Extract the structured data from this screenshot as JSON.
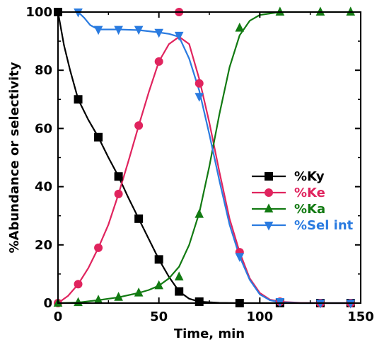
{
  "chart_data": {
    "type": "line",
    "title": "",
    "xlabel": "Time, min",
    "ylabel": "%Abundance or selectivity",
    "xlim": [
      0,
      150
    ],
    "ylim": [
      0,
      100
    ],
    "xticks": [
      0,
      50,
      100,
      150
    ],
    "yticks": [
      0,
      20,
      40,
      60,
      80,
      100
    ],
    "grid": false,
    "legend_position": "center-right",
    "series": [
      {
        "name": "%Ky",
        "color": "#000000",
        "marker": "square",
        "x": [
          0,
          10,
          20,
          30,
          40,
          50,
          60,
          70,
          90,
          110,
          130,
          145
        ],
        "y": [
          100,
          70,
          57,
          43.5,
          29,
          15,
          4,
          0.5,
          0,
          0,
          0,
          0
        ],
        "curve": [
          [
            0,
            100
          ],
          [
            3,
            88.5
          ],
          [
            6,
            80
          ],
          [
            10,
            70
          ],
          [
            15,
            63
          ],
          [
            20,
            57
          ],
          [
            25,
            50
          ],
          [
            30,
            43.5
          ],
          [
            35,
            36
          ],
          [
            40,
            29
          ],
          [
            45,
            22
          ],
          [
            50,
            15
          ],
          [
            55,
            9
          ],
          [
            60,
            4
          ],
          [
            65,
            1.5
          ],
          [
            70,
            0.5
          ],
          [
            80,
            0.1
          ],
          [
            90,
            0
          ],
          [
            110,
            0
          ],
          [
            130,
            0
          ],
          [
            145,
            0
          ]
        ]
      },
      {
        "name": "%Ke",
        "color": "#e0245e",
        "marker": "circle",
        "x": [
          0,
          10,
          20,
          30,
          40,
          50,
          60,
          70,
          90,
          110,
          130,
          145
        ],
        "y": [
          0,
          6.5,
          19,
          37.5,
          61,
          83,
          100,
          75.5,
          17.5,
          0.5,
          0,
          0
        ],
        "curve": [
          [
            0,
            0
          ],
          [
            5,
            2.5
          ],
          [
            10,
            6.5
          ],
          [
            15,
            12
          ],
          [
            20,
            19
          ],
          [
            25,
            27
          ],
          [
            30,
            37.5
          ],
          [
            35,
            49
          ],
          [
            40,
            61
          ],
          [
            45,
            72.5
          ],
          [
            50,
            83
          ],
          [
            55,
            89
          ],
          [
            60,
            91.5
          ],
          [
            65,
            89
          ],
          [
            70,
            77
          ],
          [
            75,
            62
          ],
          [
            80,
            45
          ],
          [
            85,
            29
          ],
          [
            90,
            17.5
          ],
          [
            95,
            8.5
          ],
          [
            100,
            3.5
          ],
          [
            105,
            1.2
          ],
          [
            110,
            0.5
          ],
          [
            120,
            0.1
          ],
          [
            130,
            0
          ],
          [
            145,
            0
          ]
        ]
      },
      {
        "name": "%Ka",
        "color": "#127a12",
        "marker": "triangle-up",
        "x": [
          0,
          10,
          20,
          30,
          40,
          50,
          60,
          70,
          90,
          110,
          130,
          145
        ],
        "y": [
          0,
          0.2,
          1,
          2,
          3.5,
          6,
          9,
          30.5,
          94.5,
          100,
          100,
          100
        ],
        "curve": [
          [
            0,
            0
          ],
          [
            10,
            0.2
          ],
          [
            20,
            1
          ],
          [
            30,
            2
          ],
          [
            40,
            3.5
          ],
          [
            45,
            4.5
          ],
          [
            50,
            6
          ],
          [
            55,
            8.5
          ],
          [
            60,
            12.5
          ],
          [
            65,
            20
          ],
          [
            70,
            31
          ],
          [
            75,
            47
          ],
          [
            80,
            65
          ],
          [
            85,
            81
          ],
          [
            90,
            92
          ],
          [
            95,
            97
          ],
          [
            100,
            99
          ],
          [
            110,
            100
          ],
          [
            130,
            100
          ],
          [
            145,
            100
          ]
        ]
      },
      {
        "name": "%Sel int",
        "color": "#2a7be0",
        "marker": "triangle-down",
        "x": [
          10,
          20,
          30,
          40,
          50,
          60,
          70,
          90,
          110,
          130,
          145
        ],
        "y": [
          100,
          94,
          94,
          94,
          93,
          92,
          71,
          16,
          0.5,
          0,
          0
        ],
        "curve": [
          [
            10,
            100
          ],
          [
            13,
            98
          ],
          [
            16,
            95.5
          ],
          [
            20,
            94
          ],
          [
            30,
            94
          ],
          [
            40,
            93.8
          ],
          [
            50,
            93
          ],
          [
            55,
            92.5
          ],
          [
            60,
            91.5
          ],
          [
            65,
            84
          ],
          [
            70,
            73
          ],
          [
            75,
            58
          ],
          [
            80,
            42
          ],
          [
            85,
            27
          ],
          [
            90,
            16
          ],
          [
            95,
            8
          ],
          [
            100,
            3
          ],
          [
            105,
            1
          ],
          [
            110,
            0.3
          ],
          [
            120,
            0
          ],
          [
            130,
            0
          ],
          [
            145,
            0
          ]
        ]
      }
    ]
  }
}
